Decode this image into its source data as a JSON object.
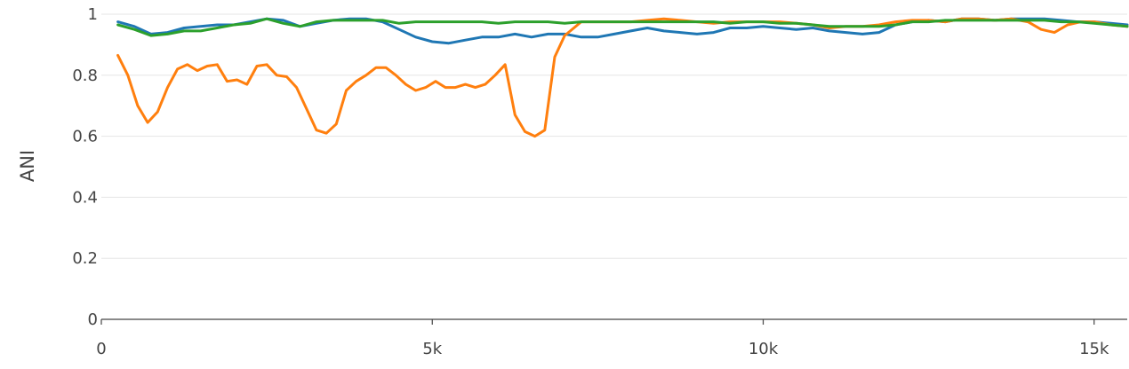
{
  "chart_data": {
    "type": "line",
    "title": "",
    "xlabel": "",
    "ylabel": "ANI",
    "xlim": [
      0,
      15500
    ],
    "ylim": [
      0,
      1
    ],
    "grid": true,
    "x_ticks": [
      {
        "value": 0,
        "label": "0"
      },
      {
        "value": 5000,
        "label": "5k"
      },
      {
        "value": 10000,
        "label": "10k"
      },
      {
        "value": 15000,
        "label": "15k"
      }
    ],
    "y_ticks": [
      {
        "value": 0,
        "label": "0"
      },
      {
        "value": 0.2,
        "label": "0.2"
      },
      {
        "value": 0.4,
        "label": "0.4"
      },
      {
        "value": 0.6,
        "label": "0.6"
      },
      {
        "value": 0.8,
        "label": "0.8"
      },
      {
        "value": 1,
        "label": "1"
      }
    ],
    "series": [
      {
        "color": "#1f77b4",
        "x": [
          250,
          500,
          750,
          1000,
          1250,
          1500,
          1750,
          2000,
          2250,
          2500,
          2750,
          3000,
          3250,
          3500,
          3750,
          4000,
          4250,
          4500,
          4750,
          5000,
          5250,
          5500,
          5750,
          6000,
          6250,
          6500,
          6750,
          7000,
          7250,
          7500,
          7750,
          8000,
          8250,
          8500,
          8750,
          9000,
          9250,
          9500,
          9750,
          10000,
          10250,
          10500,
          10750,
          11000,
          11250,
          11500,
          11750,
          12000,
          12250,
          12500,
          12750,
          13000,
          13250,
          13500,
          13750,
          14000,
          14250,
          14500,
          14750,
          15000,
          15250,
          15500
        ],
        "y": [
          0.975,
          0.96,
          0.935,
          0.94,
          0.955,
          0.96,
          0.965,
          0.965,
          0.975,
          0.985,
          0.98,
          0.96,
          0.97,
          0.98,
          0.985,
          0.985,
          0.975,
          0.95,
          0.925,
          0.91,
          0.905,
          0.915,
          0.925,
          0.925,
          0.935,
          0.925,
          0.935,
          0.935,
          0.925,
          0.925,
          0.935,
          0.945,
          0.955,
          0.945,
          0.94,
          0.935,
          0.94,
          0.955,
          0.955,
          0.96,
          0.955,
          0.95,
          0.955,
          0.945,
          0.94,
          0.935,
          0.94,
          0.965,
          0.975,
          0.98,
          0.975,
          0.985,
          0.985,
          0.98,
          0.985,
          0.985,
          0.985,
          0.98,
          0.975,
          0.975,
          0.97,
          0.965
        ]
      },
      {
        "color": "#ff7f0e",
        "x": [
          250,
          400,
          550,
          700,
          850,
          1000,
          1150,
          1300,
          1450,
          1600,
          1750,
          1900,
          2050,
          2200,
          2350,
          2500,
          2650,
          2800,
          2950,
          3100,
          3250,
          3400,
          3550,
          3700,
          3850,
          4000,
          4150,
          4300,
          4450,
          4600,
          4750,
          4900,
          5050,
          5200,
          5350,
          5500,
          5650,
          5800,
          5950,
          6100,
          6250,
          6400,
          6550,
          6700,
          6850,
          7000,
          7250,
          7500,
          7750,
          8000,
          8250,
          8500,
          8750,
          9000,
          9250,
          9500,
          9750,
          10000,
          10250,
          10500,
          10750,
          11000,
          11250,
          11500,
          11750,
          12000,
          12250,
          12500,
          12750,
          13000,
          13250,
          13500,
          13750,
          14000,
          14200,
          14400,
          14600,
          14800,
          15000,
          15250,
          15500
        ],
        "y": [
          0.865,
          0.8,
          0.7,
          0.645,
          0.68,
          0.76,
          0.82,
          0.835,
          0.815,
          0.83,
          0.835,
          0.78,
          0.785,
          0.77,
          0.83,
          0.835,
          0.8,
          0.795,
          0.76,
          0.69,
          0.62,
          0.61,
          0.64,
          0.75,
          0.78,
          0.8,
          0.825,
          0.825,
          0.8,
          0.77,
          0.75,
          0.76,
          0.78,
          0.76,
          0.76,
          0.77,
          0.76,
          0.77,
          0.8,
          0.835,
          0.67,
          0.615,
          0.6,
          0.62,
          0.86,
          0.93,
          0.975,
          0.975,
          0.975,
          0.975,
          0.98,
          0.985,
          0.98,
          0.975,
          0.97,
          0.975,
          0.975,
          0.975,
          0.975,
          0.97,
          0.965,
          0.955,
          0.96,
          0.96,
          0.965,
          0.975,
          0.98,
          0.98,
          0.975,
          0.985,
          0.985,
          0.98,
          0.985,
          0.975,
          0.95,
          0.94,
          0.965,
          0.975,
          0.975,
          0.965,
          0.96
        ]
      },
      {
        "color": "#2ca02c",
        "x": [
          250,
          500,
          750,
          1000,
          1250,
          1500,
          1750,
          2000,
          2250,
          2500,
          2750,
          3000,
          3250,
          3500,
          3750,
          4000,
          4250,
          4500,
          4750,
          5000,
          5250,
          5500,
          5750,
          6000,
          6250,
          6500,
          6750,
          7000,
          7250,
          7500,
          7750,
          8000,
          8250,
          8500,
          8750,
          9000,
          9250,
          9500,
          9750,
          10000,
          10250,
          10500,
          10750,
          11000,
          11250,
          11500,
          11750,
          12000,
          12250,
          12500,
          12750,
          13000,
          13250,
          13500,
          13750,
          14000,
          14250,
          14500,
          14750,
          15000,
          15250,
          15500
        ],
        "y": [
          0.965,
          0.95,
          0.93,
          0.935,
          0.945,
          0.945,
          0.955,
          0.965,
          0.97,
          0.985,
          0.97,
          0.96,
          0.975,
          0.98,
          0.98,
          0.98,
          0.98,
          0.97,
          0.975,
          0.975,
          0.975,
          0.975,
          0.975,
          0.97,
          0.975,
          0.975,
          0.975,
          0.97,
          0.975,
          0.975,
          0.975,
          0.975,
          0.975,
          0.975,
          0.975,
          0.975,
          0.975,
          0.97,
          0.975,
          0.975,
          0.97,
          0.97,
          0.965,
          0.96,
          0.96,
          0.96,
          0.96,
          0.965,
          0.975,
          0.975,
          0.98,
          0.98,
          0.98,
          0.98,
          0.98,
          0.98,
          0.98,
          0.975,
          0.975,
          0.97,
          0.965,
          0.96
        ]
      }
    ]
  }
}
